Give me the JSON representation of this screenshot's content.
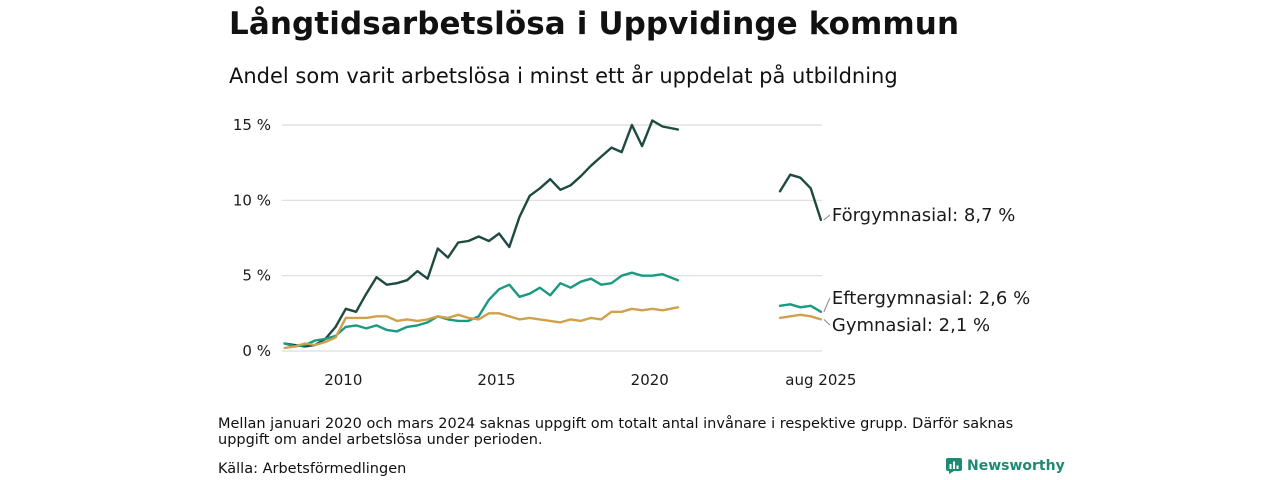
{
  "title": "Långtidsarbetslösa i Uppvidinge kommun",
  "subtitle": "Andel som varit arbetslösa i minst ett år uppdelat på utbildning",
  "note": "Mellan januari 2020 och mars 2024 saknas uppgift om totalt antal invånare i respektive grupp. Därför saknas uppgift om andel arbetslösa under perioden.",
  "source": "Källa: Arbetsförmedlingen",
  "brand": {
    "name": "Newsworthy",
    "icon": "newsworthy-logo-icon",
    "color": "#1c8b73"
  },
  "chart_data": {
    "type": "line",
    "title": "Långtidsarbetslösa i Uppvidinge kommun",
    "subtitle": "Andel som varit arbetslösa i minst ett år uppdelat på utbildning",
    "xlabel": "",
    "ylabel": "",
    "ylim": [
      0,
      15.5
    ],
    "grid": true,
    "legend": "end-labels",
    "y_ticks": [
      {
        "value": 0,
        "label": "0 %"
      },
      {
        "value": 5,
        "label": "5 %"
      },
      {
        "value": 10,
        "label": "10 %"
      },
      {
        "value": 15,
        "label": "15 %"
      }
    ],
    "x_ticks": [
      {
        "value": "2010-01",
        "label": "2010"
      },
      {
        "value": "2015-01",
        "label": "2015"
      },
      {
        "value": "2020-01",
        "label": "2020"
      },
      {
        "value": "2025-08",
        "label": "aug 2025"
      }
    ],
    "series": [
      {
        "name": "Förgymnasial",
        "color": "#1e4a3f",
        "end_label": "Förgymnasial: 8,7 %",
        "points": [
          [
            "2008-02",
            0.5
          ],
          [
            "2008-06",
            0.4
          ],
          [
            "2008-10",
            0.3
          ],
          [
            "2009-02",
            0.4
          ],
          [
            "2009-06",
            0.8
          ],
          [
            "2009-10",
            1.6
          ],
          [
            "2010-02",
            2.8
          ],
          [
            "2010-06",
            2.6
          ],
          [
            "2010-10",
            3.8
          ],
          [
            "2011-02",
            4.9
          ],
          [
            "2011-06",
            4.4
          ],
          [
            "2011-10",
            4.5
          ],
          [
            "2012-02",
            4.7
          ],
          [
            "2012-06",
            5.3
          ],
          [
            "2012-10",
            4.8
          ],
          [
            "2013-02",
            6.8
          ],
          [
            "2013-06",
            6.2
          ],
          [
            "2013-10",
            7.2
          ],
          [
            "2014-02",
            7.3
          ],
          [
            "2014-06",
            7.6
          ],
          [
            "2014-10",
            7.3
          ],
          [
            "2015-02",
            7.8
          ],
          [
            "2015-06",
            6.9
          ],
          [
            "2015-10",
            8.9
          ],
          [
            "2016-02",
            10.3
          ],
          [
            "2016-06",
            10.8
          ],
          [
            "2016-10",
            11.4
          ],
          [
            "2017-02",
            10.7
          ],
          [
            "2017-06",
            11.0
          ],
          [
            "2017-10",
            11.6
          ],
          [
            "2018-02",
            12.3
          ],
          [
            "2018-06",
            12.9
          ],
          [
            "2018-10",
            13.5
          ],
          [
            "2019-02",
            13.2
          ],
          [
            "2019-06",
            15.0
          ],
          [
            "2019-10",
            13.6
          ],
          [
            "2020-02",
            15.3
          ],
          [
            "2020-06",
            14.9
          ],
          [
            "2020-12",
            14.7
          ],
          null,
          [
            "2024-04",
            10.6
          ],
          [
            "2024-08",
            11.7
          ],
          [
            "2024-12",
            11.5
          ],
          [
            "2025-04",
            10.8
          ],
          [
            "2025-08",
            8.7
          ]
        ]
      },
      {
        "name": "Eftergymnasial",
        "color": "#1a9a80",
        "end_label": "Eftergymnasial: 2,6 %",
        "points": [
          [
            "2008-02",
            0.5
          ],
          [
            "2008-06",
            0.3
          ],
          [
            "2008-10",
            0.4
          ],
          [
            "2009-02",
            0.7
          ],
          [
            "2009-06",
            0.8
          ],
          [
            "2009-10",
            1.0
          ],
          [
            "2010-02",
            1.6
          ],
          [
            "2010-06",
            1.7
          ],
          [
            "2010-10",
            1.5
          ],
          [
            "2011-02",
            1.7
          ],
          [
            "2011-06",
            1.4
          ],
          [
            "2011-10",
            1.3
          ],
          [
            "2012-02",
            1.6
          ],
          [
            "2012-06",
            1.7
          ],
          [
            "2012-10",
            1.9
          ],
          [
            "2013-02",
            2.3
          ],
          [
            "2013-06",
            2.1
          ],
          [
            "2013-10",
            2.0
          ],
          [
            "2014-02",
            2.0
          ],
          [
            "2014-06",
            2.3
          ],
          [
            "2014-10",
            3.4
          ],
          [
            "2015-02",
            4.1
          ],
          [
            "2015-06",
            4.4
          ],
          [
            "2015-10",
            3.6
          ],
          [
            "2016-02",
            3.8
          ],
          [
            "2016-06",
            4.2
          ],
          [
            "2016-10",
            3.7
          ],
          [
            "2017-02",
            4.5
          ],
          [
            "2017-06",
            4.2
          ],
          [
            "2017-10",
            4.6
          ],
          [
            "2018-02",
            4.8
          ],
          [
            "2018-06",
            4.4
          ],
          [
            "2018-10",
            4.5
          ],
          [
            "2019-02",
            5.0
          ],
          [
            "2019-06",
            5.2
          ],
          [
            "2019-10",
            5.0
          ],
          [
            "2020-02",
            5.0
          ],
          [
            "2020-06",
            5.1
          ],
          [
            "2020-12",
            4.7
          ],
          null,
          [
            "2024-04",
            3.0
          ],
          [
            "2024-08",
            3.1
          ],
          [
            "2024-12",
            2.9
          ],
          [
            "2025-04",
            3.0
          ],
          [
            "2025-08",
            2.6
          ]
        ]
      },
      {
        "name": "Gymnasial",
        "color": "#d1a04c",
        "end_label": "Gymnasial: 2,1 %",
        "points": [
          [
            "2008-02",
            0.2
          ],
          [
            "2008-06",
            0.3
          ],
          [
            "2008-10",
            0.5
          ],
          [
            "2009-02",
            0.4
          ],
          [
            "2009-06",
            0.6
          ],
          [
            "2009-10",
            0.9
          ],
          [
            "2010-02",
            2.2
          ],
          [
            "2010-06",
            2.2
          ],
          [
            "2010-10",
            2.2
          ],
          [
            "2011-02",
            2.3
          ],
          [
            "2011-06",
            2.3
          ],
          [
            "2011-10",
            2.0
          ],
          [
            "2012-02",
            2.1
          ],
          [
            "2012-06",
            2.0
          ],
          [
            "2012-10",
            2.1
          ],
          [
            "2013-02",
            2.3
          ],
          [
            "2013-06",
            2.2
          ],
          [
            "2013-10",
            2.4
          ],
          [
            "2014-02",
            2.2
          ],
          [
            "2014-06",
            2.1
          ],
          [
            "2014-10",
            2.5
          ],
          [
            "2015-02",
            2.5
          ],
          [
            "2015-06",
            2.3
          ],
          [
            "2015-10",
            2.1
          ],
          [
            "2016-02",
            2.2
          ],
          [
            "2016-06",
            2.1
          ],
          [
            "2016-10",
            2.0
          ],
          [
            "2017-02",
            1.9
          ],
          [
            "2017-06",
            2.1
          ],
          [
            "2017-10",
            2.0
          ],
          [
            "2018-02",
            2.2
          ],
          [
            "2018-06",
            2.1
          ],
          [
            "2018-10",
            2.6
          ],
          [
            "2019-02",
            2.6
          ],
          [
            "2019-06",
            2.8
          ],
          [
            "2019-10",
            2.7
          ],
          [
            "2020-02",
            2.8
          ],
          [
            "2020-06",
            2.7
          ],
          [
            "2020-12",
            2.9
          ],
          null,
          [
            "2024-04",
            2.2
          ],
          [
            "2024-08",
            2.3
          ],
          [
            "2024-12",
            2.4
          ],
          [
            "2025-04",
            2.3
          ],
          [
            "2025-08",
            2.1
          ]
        ]
      }
    ]
  }
}
